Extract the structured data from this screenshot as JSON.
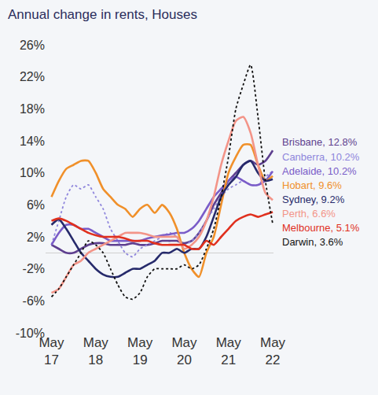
{
  "chart_data": {
    "type": "line",
    "title": "Annual change in rents, Houses",
    "categories": [
      "May 17",
      null,
      null,
      null,
      null,
      null,
      "May 18",
      null,
      null,
      null,
      null,
      null,
      "May 19",
      null,
      null,
      null,
      null,
      null,
      "May 20",
      null,
      null,
      null,
      null,
      null,
      "May 21",
      null,
      null,
      null,
      null,
      null,
      "May 22"
    ],
    "ylim": [
      -10,
      26
    ],
    "yticks": [
      {
        "value": -10,
        "label": "-10%"
      },
      {
        "value": -6,
        "label": "-6%"
      },
      {
        "value": -2,
        "label": "-2%"
      },
      {
        "value": 2,
        "label": "2%"
      },
      {
        "value": 6,
        "label": "6%"
      },
      {
        "value": 10,
        "label": "10%"
      },
      {
        "value": 14,
        "label": "14%"
      },
      {
        "value": 18,
        "label": "18%"
      },
      {
        "value": 22,
        "label": "22%"
      },
      {
        "value": 26,
        "label": "26%"
      }
    ],
    "grid": false,
    "series": [
      {
        "name": "Brisbane",
        "label": "Brisbane, 12.8%",
        "color": "#5e3f8f",
        "line_style": "solid",
        "values": [
          1,
          0.5,
          0,
          0,
          0.5,
          1,
          1.2,
          1.2,
          1,
          1,
          1,
          1.2,
          1,
          1,
          1.2,
          1.5,
          1.5,
          1.5,
          1.2,
          1.5,
          2.5,
          4,
          6,
          7.5,
          9,
          10,
          11,
          11.5,
          11,
          11.5,
          12.8
        ]
      },
      {
        "name": "Canberra",
        "label": "Canberra, 10.2%",
        "color": "#8f86dc",
        "line_style": "dot",
        "values": [
          1,
          4,
          7,
          8.5,
          8,
          8.5,
          7,
          5.5,
          3,
          1.5,
          0,
          -0.5,
          0.5,
          1,
          1.5,
          2,
          2.5,
          2,
          1,
          1.5,
          2.5,
          4,
          5.5,
          7,
          8,
          8.5,
          9,
          8.5,
          8.5,
          9.5,
          10.2
        ]
      },
      {
        "name": "Adelaide",
        "label": "Adelaide, 10.2%",
        "color": "#7a5cc8",
        "line_style": "solid",
        "values": [
          1,
          2.5,
          3.5,
          3.5,
          3,
          3,
          2.5,
          2,
          1.5,
          1.5,
          1.5,
          1.5,
          1.5,
          1.8,
          2,
          2.2,
          2.3,
          2.5,
          2.5,
          3,
          4,
          5.5,
          7,
          8,
          9,
          9.5,
          9,
          8.5,
          8.5,
          9,
          10.2
        ]
      },
      {
        "name": "Hobart",
        "label": "Hobart, 9.6%",
        "color": "#f0902a",
        "line_style": "solid",
        "values": [
          7,
          9,
          10.5,
          11,
          11.5,
          11.5,
          10,
          8,
          7,
          6,
          5.5,
          4.5,
          5.5,
          6,
          5,
          6,
          5,
          3,
          0,
          -2,
          -3,
          0,
          2,
          6,
          10,
          12,
          13.5,
          13.5,
          11,
          9,
          9.6
        ]
      },
      {
        "name": "Sydney",
        "label": "Sydney, 9.2%",
        "color": "#262a6b",
        "line_style": "solid",
        "values": [
          3.5,
          4.2,
          3,
          1.5,
          0,
          -1,
          -2,
          -2.7,
          -3,
          -3,
          -2.5,
          -2,
          -2,
          -1.5,
          -1,
          0,
          0,
          0.5,
          0,
          0.5,
          0.5,
          2,
          4.5,
          7,
          8.5,
          9.5,
          11,
          11.5,
          10,
          9,
          9.2
        ]
      },
      {
        "name": "Perth",
        "label": "Perth, 6.6%",
        "color": "#f39488",
        "line_style": "solid",
        "values": [
          -5,
          -4.5,
          -3,
          -1.5,
          -1,
          0,
          0.5,
          1,
          1.5,
          2,
          2.5,
          2.5,
          2.5,
          2.3,
          2,
          2,
          2,
          2,
          0.5,
          1,
          2,
          4,
          7,
          11,
          14,
          16.5,
          17,
          15,
          11,
          7.5,
          6.6
        ]
      },
      {
        "name": "Melbourne",
        "label": "Melbourne, 5.1%",
        "color": "#e0301e",
        "line_style": "solid",
        "values": [
          4,
          4.3,
          4,
          3.5,
          3,
          2.5,
          2.2,
          2,
          2,
          2,
          1.8,
          1.5,
          1.5,
          1.5,
          1.2,
          1,
          1,
          1,
          1,
          0.5,
          0.5,
          1.5,
          1,
          2,
          3,
          4,
          4.5,
          4.8,
          4.5,
          4.8,
          5.1
        ]
      },
      {
        "name": "Darwin",
        "label": "Darwin, 3.6%",
        "color": "#111111",
        "line_style": "dot",
        "values": [
          -5.5,
          -4.5,
          -3,
          -1.5,
          0,
          1.5,
          1,
          0,
          -2,
          -4,
          -5.5,
          -5.8,
          -5,
          -3,
          -2,
          -2,
          -2,
          -2,
          -1.5,
          -2,
          -1.5,
          0.5,
          3,
          7,
          12,
          18,
          21,
          23.5,
          17,
          9,
          3.6
        ]
      }
    ]
  }
}
